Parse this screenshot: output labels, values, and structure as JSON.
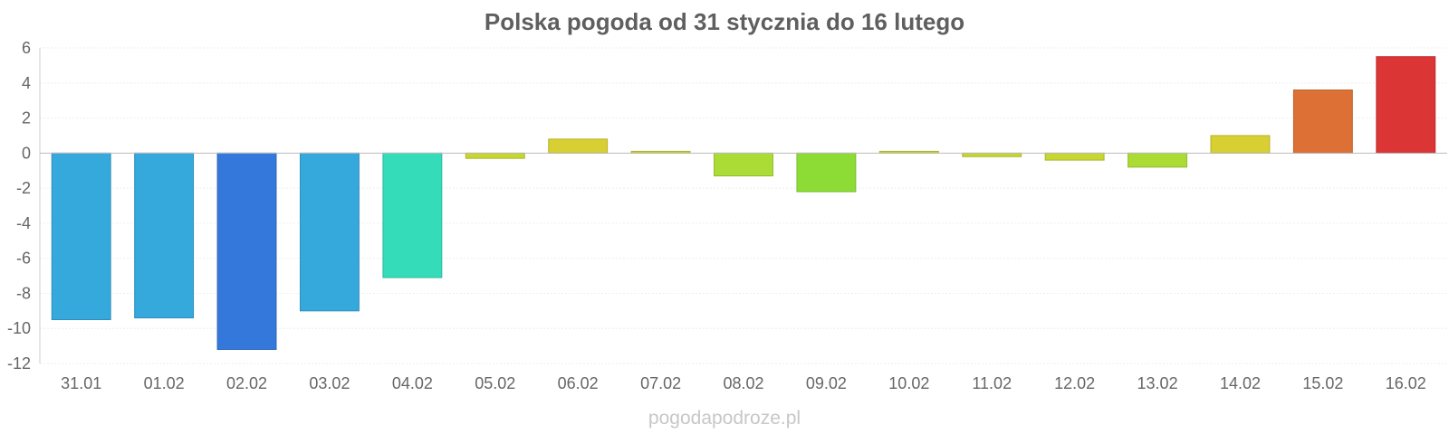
{
  "chart_data": {
    "type": "bar",
    "title": "Polska pogoda od 31 stycznia do 16 lutego",
    "xlabel": "",
    "ylabel": "",
    "ylim": [
      -12,
      6
    ],
    "yticks": [
      6,
      4,
      2,
      0,
      -2,
      -4,
      -6,
      -8,
      -10,
      -12
    ],
    "grid": true,
    "categories": [
      "31.01",
      "01.02",
      "02.02",
      "03.02",
      "04.02",
      "05.02",
      "06.02",
      "07.02",
      "08.02",
      "09.02",
      "10.02",
      "11.02",
      "12.02",
      "13.02",
      "14.02",
      "15.02",
      "16.02"
    ],
    "values": [
      -9.5,
      -9.4,
      -11.2,
      -9.0,
      -7.1,
      -0.3,
      0.8,
      0.1,
      -1.3,
      -2.2,
      0.1,
      -0.2,
      -0.4,
      -0.8,
      1.0,
      3.6,
      5.5
    ],
    "colors": [
      "#35a8dc",
      "#35a8dc",
      "#3578dc",
      "#35a8dc",
      "#34dcb9",
      "#c7d631",
      "#d8cf33",
      "#c9d531",
      "#abdc35",
      "#8ddc35",
      "#c9d531",
      "#c7d631",
      "#c7d631",
      "#abdc35",
      "#d8cf33",
      "#dd7135",
      "#dc3535"
    ]
  },
  "watermark": "pogodapodroze.pl"
}
